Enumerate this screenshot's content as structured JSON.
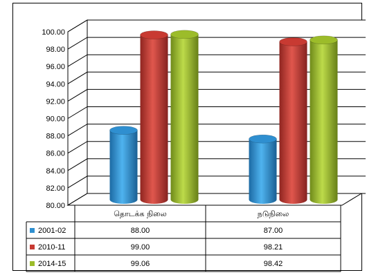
{
  "chart_data": {
    "type": "bar",
    "style": "3d-cylinder",
    "categories": [
      "தொடக்க நிலை",
      "நடுநிலை"
    ],
    "series": [
      {
        "name": "2001-02",
        "values": [
          88.0,
          87.0
        ],
        "color": "#2f8fd0"
      },
      {
        "name": "2010-11",
        "values": [
          99.0,
          98.21
        ],
        "color": "#c83a32"
      },
      {
        "name": "2014-15",
        "values": [
          99.06,
          98.42
        ],
        "color": "#9cbc2a"
      }
    ],
    "data_table": {
      "rows": [
        {
          "label": "2001-02",
          "cells": [
            "88.00",
            "87.00"
          ]
        },
        {
          "label": "2010-11",
          "cells": [
            "99.00",
            "98.21"
          ]
        },
        {
          "label": "2014-15",
          "cells": [
            "99.06",
            "98.42"
          ]
        }
      ]
    },
    "y_ticks": [
      "80.00",
      "82.00",
      "84.00",
      "86.00",
      "88.00",
      "90.00",
      "92.00",
      "94.00",
      "96.00",
      "98.00",
      "100.00"
    ],
    "ylim": [
      80,
      100
    ],
    "grid": true,
    "legend": "data-table-left",
    "title": "",
    "xlabel": "",
    "ylabel": ""
  }
}
